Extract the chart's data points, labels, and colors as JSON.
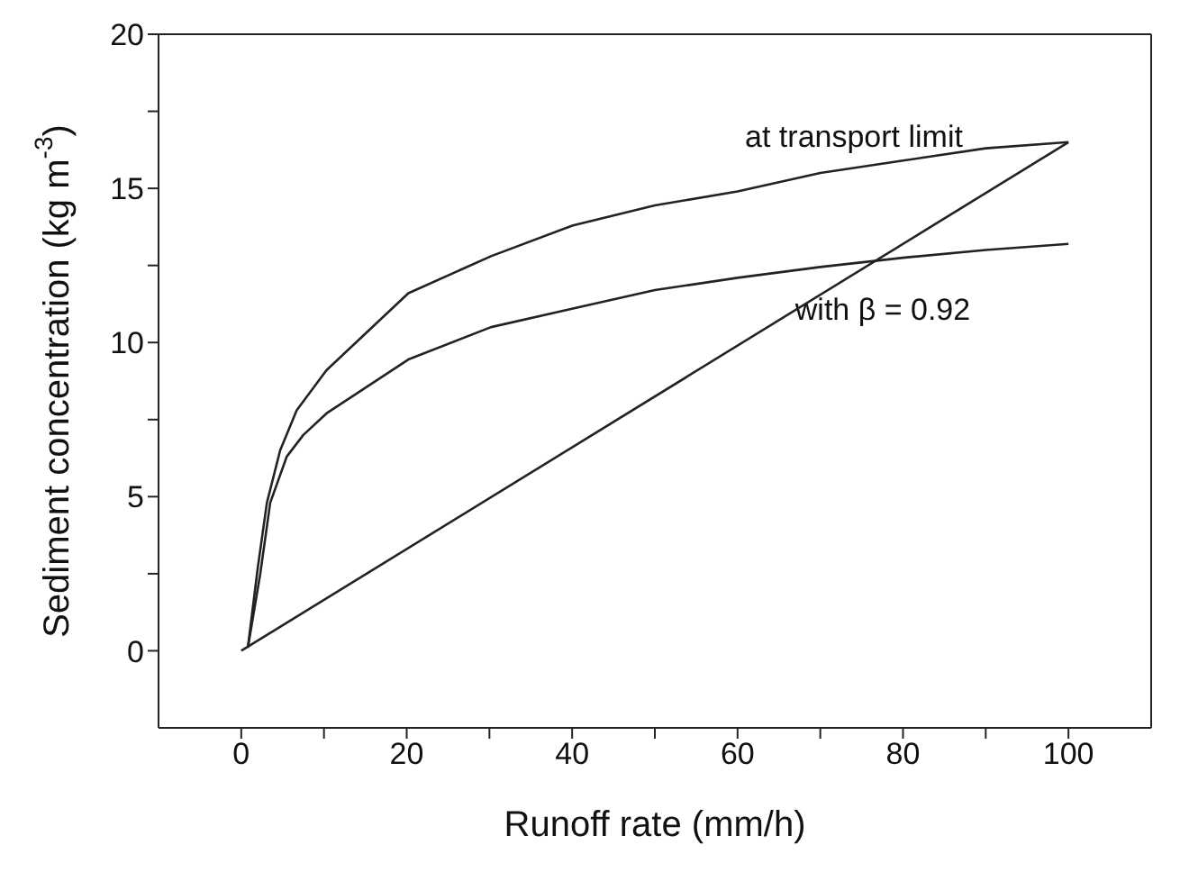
{
  "chart_data": {
    "type": "line",
    "xlabel": "Runoff rate (mm/h)",
    "ylabel": "Sediment concentration (kg m$^{-3}$)",
    "xlim": [
      -10,
      110
    ],
    "xticks": [
      0,
      {
        "value": 10,
        "label": null
      },
      20,
      {
        "value": 30,
        "label": null
      },
      40,
      {
        "value": 50,
        "label": null
      },
      60,
      {
        "value": 70,
        "label": null
      },
      80,
      {
        "value": 90,
        "label": null
      },
      100
    ],
    "ylim": [
      -2.5,
      20
    ],
    "yticks": [
      0,
      {
        "value": 2.5,
        "label": null
      },
      5,
      {
        "value": 7.5,
        "label": null
      },
      10,
      {
        "value": 12.5,
        "label": null
      },
      15,
      {
        "value": 17.5,
        "label": null
      },
      20
    ],
    "marker": "none",
    "line_style": "solid",
    "series": [
      {
        "color": "#222222",
        "x": [
          0.8,
          2,
          3.1,
          4.7,
          6.7,
          10.3,
          20.2,
          30.2,
          40.1,
          50,
          60,
          70,
          80,
          90,
          100
        ],
        "values": [
          0.1,
          2.7,
          4.8,
          6.5,
          7.8,
          9.1,
          11.6,
          12.8,
          13.8,
          14.45,
          14.9,
          15.5,
          15.9,
          16.3,
          16.5
        ]
      },
      {
        "color": "#222222",
        "x": [
          0.8,
          2.3,
          3.5,
          5.5,
          7.5,
          10.3,
          20.2,
          30.2,
          40.1,
          50,
          60,
          70,
          80,
          90,
          100
        ],
        "values": [
          0.1,
          2.5,
          4.8,
          6.3,
          7,
          7.7,
          9.45,
          10.5,
          11.1,
          11.7,
          12.1,
          12.45,
          12.75,
          13,
          13.2
        ]
      },
      {
        "color": "#222222",
        "x": [
          0,
          100
        ],
        "values": [
          0,
          16.5
        ]
      }
    ],
    "annotations": [
      "at transport limit",
      "with β = 0.92"
    ]
  }
}
